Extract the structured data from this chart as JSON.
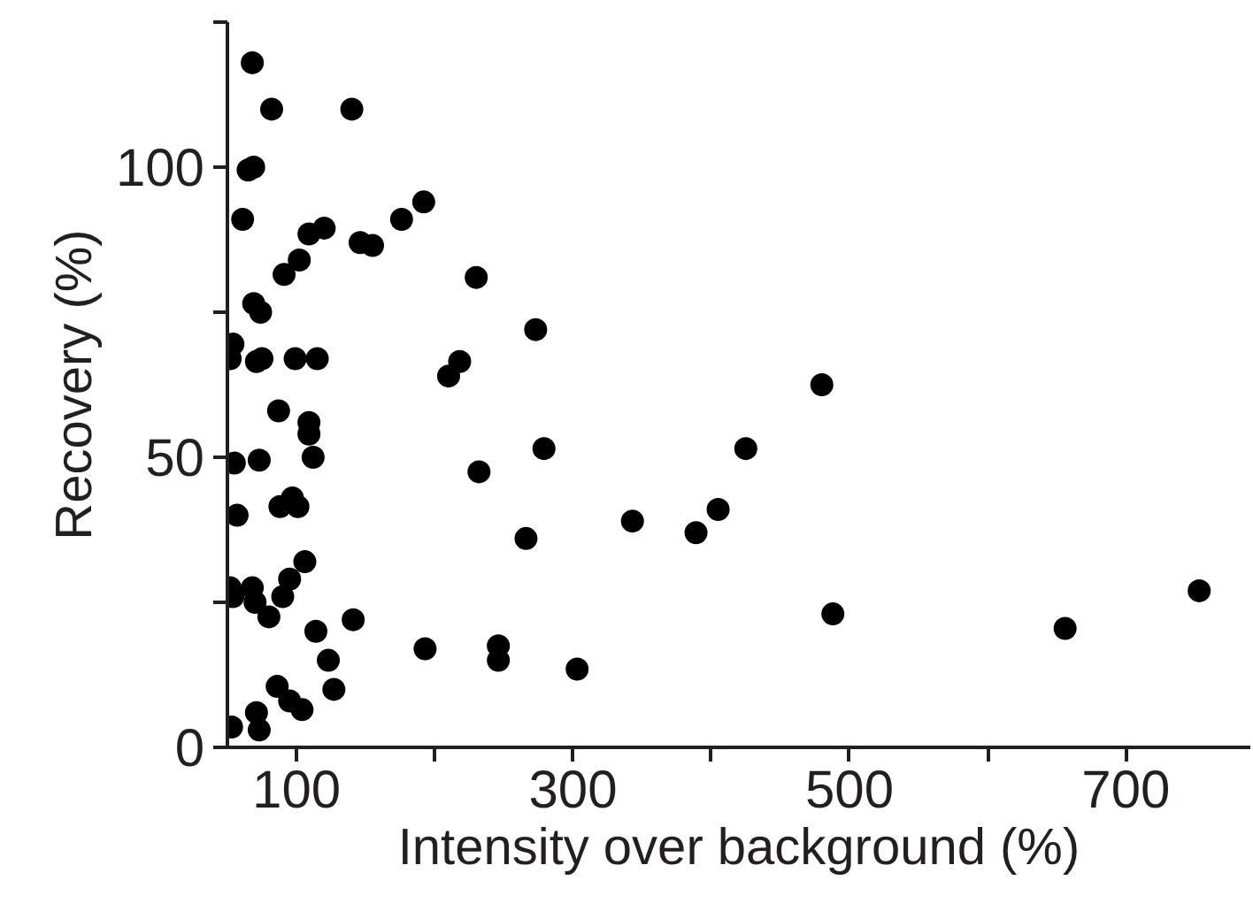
{
  "chart_data": {
    "type": "scatter",
    "xlabel": "Intensity over background (%)",
    "ylabel": "Recovery (%)",
    "xlim": [
      50,
      790
    ],
    "ylim": [
      0,
      125
    ],
    "xticks": [
      100,
      {
        "value": 200,
        "label": null
      },
      300,
      {
        "value": 400,
        "label": null
      },
      500,
      {
        "value": 600,
        "label": null
      },
      700
    ],
    "yticks": [
      0,
      {
        "value": 25,
        "label": null
      },
      50,
      {
        "value": 75,
        "label": null
      },
      100,
      {
        "value": 125,
        "label": null
      }
    ],
    "grid": false,
    "marker": "circle",
    "series": [
      {
        "color": "#000000",
        "x": [
          68,
          82,
          140,
          65,
          69,
          61,
          109,
          120,
          91,
          102,
          146,
          155,
          176,
          192,
          230,
          273,
          69,
          74,
          54,
          52,
          71,
          75,
          99,
          115,
          210,
          218,
          87,
          109,
          109,
          279,
          55,
          73,
          112,
          232,
          57,
          88,
          97,
          101,
          343,
          266,
          106,
          95,
          90,
          52,
          54,
          68,
          70,
          80,
          141,
          114,
          193,
          246,
          246,
          303,
          123,
          127,
          86,
          95,
          104,
          71,
          73,
          53,
          389,
          405,
          425,
          480,
          488,
          656,
          753
        ],
        "values": [
          118,
          110,
          110,
          99.5,
          100,
          91,
          88.5,
          89.5,
          81.5,
          84,
          87,
          86.5,
          91,
          94,
          81,
          72,
          76.5,
          75,
          69.5,
          67,
          66.5,
          67,
          67,
          67,
          64,
          66.5,
          58,
          56,
          54,
          51.5,
          49,
          49.5,
          50,
          47.5,
          40,
          41.5,
          43,
          41.5,
          39,
          36,
          32,
          29,
          26,
          27.5,
          26,
          27.5,
          25,
          22.5,
          22,
          20,
          17,
          17.5,
          15,
          13.5,
          15,
          10,
          10.5,
          8,
          6.5,
          6,
          3,
          3.5,
          37,
          41,
          51.5,
          62.5,
          23,
          20.5,
          27
        ]
      }
    ]
  }
}
